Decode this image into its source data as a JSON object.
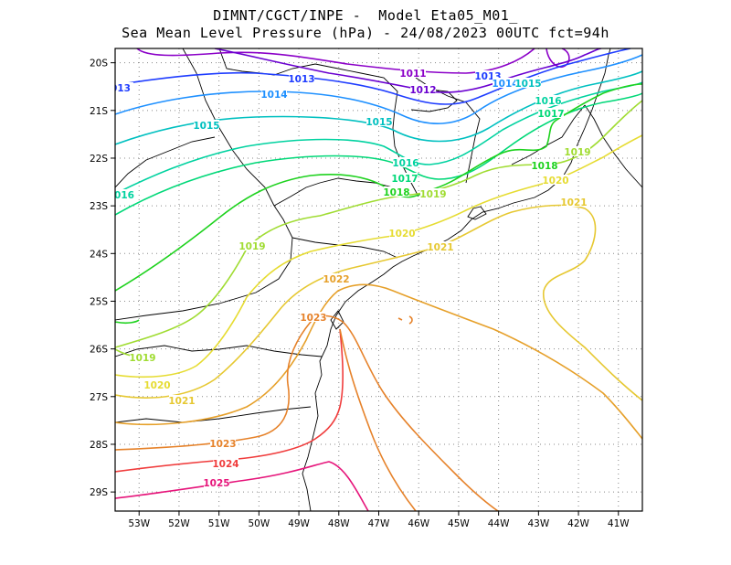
{
  "title": {
    "line1": "DIMNT/CGCT/INPE -  Model Eta05_M01_",
    "line2": "Sea Mean Level Pressure (hPa) - 24/08/2023 00UTC fct=94h"
  },
  "axes": {
    "lat_labels": [
      "20S",
      "21S",
      "22S",
      "23S",
      "24S",
      "25S",
      "26S",
      "27S",
      "28S",
      "29S"
    ],
    "lon_labels": [
      "53W",
      "52W",
      "51W",
      "50W",
      "49W",
      "48W",
      "47W",
      "46W",
      "45W",
      "44W",
      "43W",
      "42W",
      "41W"
    ]
  },
  "map": {
    "lon_range": [
      -53.6,
      -40.4
    ],
    "lat_range": [
      -29.4,
      -19.7
    ],
    "grid": "dotted",
    "coastline_color": "#000000"
  },
  "contours": [
    {
      "level": 1011,
      "label": "1011",
      "color": "#8b00c8"
    },
    {
      "level": 1012,
      "label": "1012",
      "color": "#6a00d0"
    },
    {
      "level": 1013,
      "label": "1013",
      "color": "#1e3cff"
    },
    {
      "level": 1014,
      "label": "1014",
      "color": "#1e90ff"
    },
    {
      "level": 1015,
      "label": "1015",
      "color": "#00c0c0"
    },
    {
      "level": 1016,
      "label": "1016",
      "color": "#00d2a0"
    },
    {
      "level": 1017,
      "label": "1017",
      "color": "#00d878"
    },
    {
      "level": 1018,
      "label": "1018",
      "color": "#1ed21e"
    },
    {
      "level": 1019,
      "label": "1019",
      "color": "#a0dc32"
    },
    {
      "level": 1020,
      "label": "1020",
      "color": "#e6dc32"
    },
    {
      "level": 1021,
      "label": "1021",
      "color": "#e6c832"
    },
    {
      "level": 1022,
      "label": "1022",
      "color": "#e6a02a"
    },
    {
      "level": 1023,
      "label": "1023",
      "color": "#e6822a"
    },
    {
      "level": 1024,
      "label": "1024",
      "color": "#f03c3c"
    },
    {
      "level": 1025,
      "label": "1025",
      "color": "#e6147a"
    }
  ],
  "contour_labels": [
    {
      "text": "1011",
      "level": 1011
    },
    {
      "text": "1012",
      "level": 1012
    },
    {
      "text": "1013",
      "level": 1013
    },
    {
      "text": "013",
      "level": 1013
    },
    {
      "text": "1013",
      "level": 1013
    },
    {
      "text": "1014",
      "level": 1014
    },
    {
      "text": "1014",
      "level": 1014
    },
    {
      "text": "1015",
      "level": 1015
    },
    {
      "text": "1015",
      "level": 1015
    },
    {
      "text": "1015",
      "level": 1015
    },
    {
      "text": "1016",
      "level": 1016
    },
    {
      "text": "1016",
      "level": 1016
    },
    {
      "text": "016",
      "level": 1016
    },
    {
      "text": "1017",
      "level": 1017
    },
    {
      "text": "1017",
      "level": 1017
    },
    {
      "text": "1018",
      "level": 1018
    },
    {
      "text": "1018",
      "level": 1018
    },
    {
      "text": "1019",
      "level": 1019
    },
    {
      "text": "1019",
      "level": 1019
    },
    {
      "text": "1019",
      "level": 1019
    },
    {
      "text": "1019",
      "level": 1019
    },
    {
      "text": "1020",
      "level": 1020
    },
    {
      "text": "1020",
      "level": 1020
    },
    {
      "text": "1020",
      "level": 1020
    },
    {
      "text": "1021",
      "level": 1021
    },
    {
      "text": "1021",
      "level": 1021
    },
    {
      "text": "1021",
      "level": 1021
    },
    {
      "text": "1022",
      "level": 1022
    },
    {
      "text": "1023",
      "level": 1023
    },
    {
      "text": "1023",
      "level": 1023
    },
    {
      "text": "1024",
      "level": 1024
    },
    {
      "text": "1025",
      "level": 1025
    }
  ]
}
